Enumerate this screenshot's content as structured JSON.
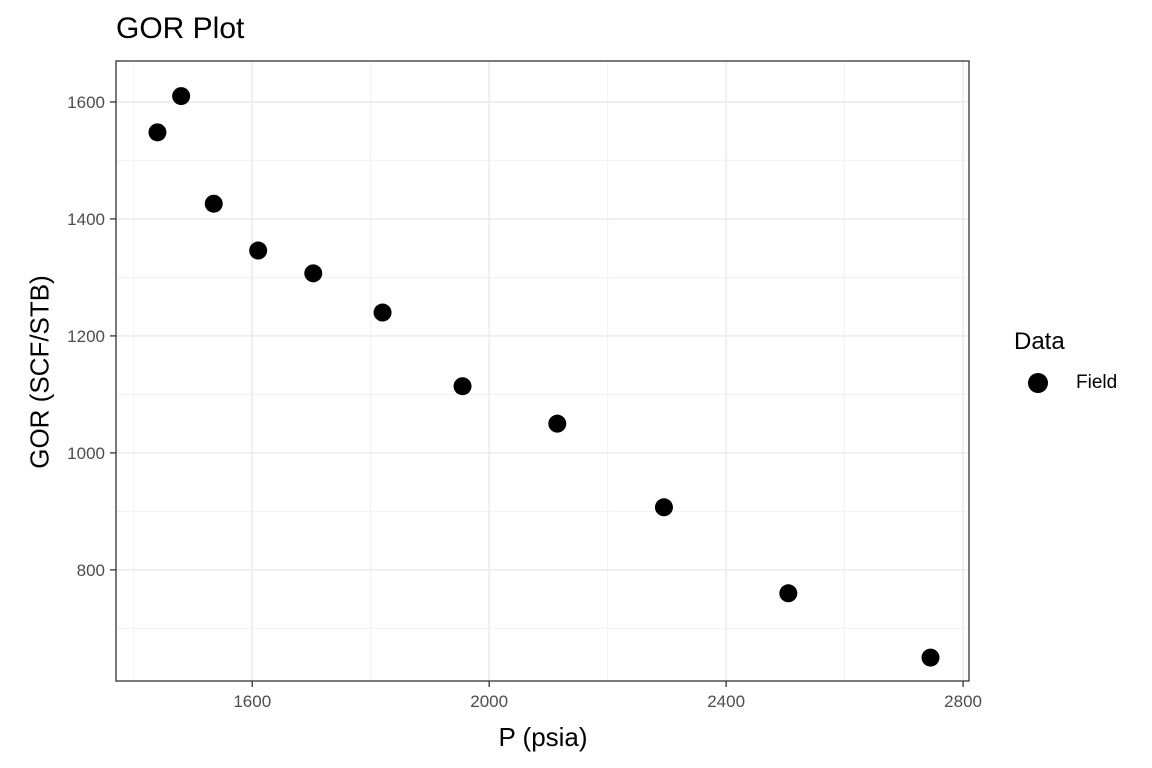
{
  "chart_data": {
    "type": "scatter",
    "title": "GOR Plot",
    "xlabel": "P (psia)",
    "ylabel": "GOR (SCF/STB)",
    "xlim": [
      1370,
      2810
    ],
    "ylim": [
      610,
      1670
    ],
    "x_ticks": [
      1600,
      2000,
      2400,
      2800
    ],
    "y_ticks": [
      800,
      1000,
      1200,
      1400,
      1600
    ],
    "grid": true,
    "legend": {
      "title": "Data",
      "position": "right"
    },
    "series": [
      {
        "name": "Field",
        "color": "#000000",
        "x": [
          1440,
          1480,
          1535,
          1610,
          1703,
          1820,
          1955,
          2115,
          2295,
          2505,
          2745
        ],
        "y": [
          1548,
          1610,
          1426,
          1346,
          1307,
          1240,
          1114,
          1050,
          907,
          760,
          650
        ]
      }
    ]
  }
}
